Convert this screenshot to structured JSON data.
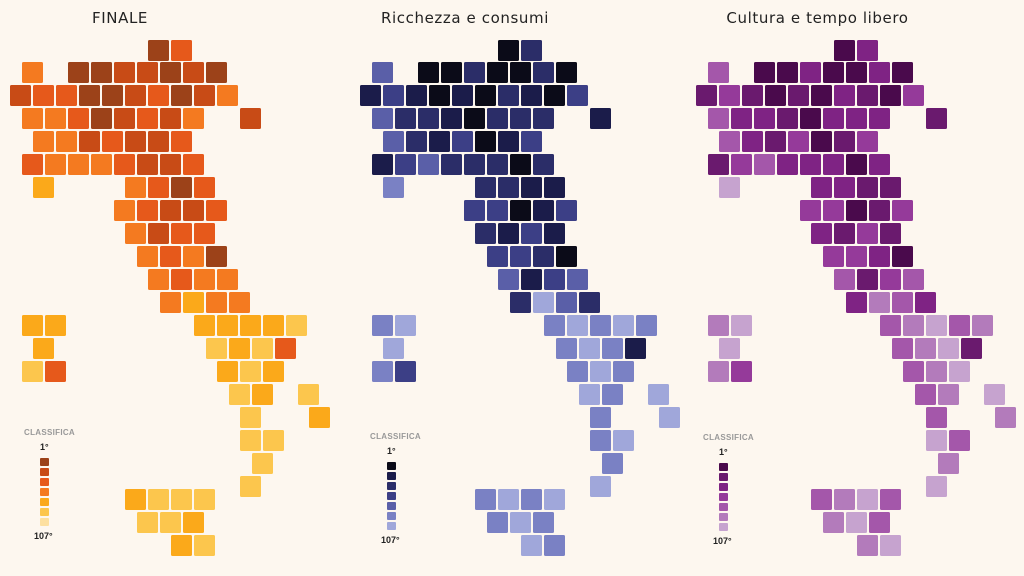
{
  "chart_data": [
    {
      "type": "heatmap",
      "title": "FINALE",
      "legend": {
        "title": "CLASSIFICA",
        "top_label": "1°",
        "bottom_label": "107°"
      },
      "colors": [
        "#9c4219",
        "#c84b16",
        "#e6591b",
        "#f47a20",
        "#fba91a",
        "#fcc64d",
        "#fde0a0"
      ]
    },
    {
      "type": "heatmap",
      "title": "Ricchezza e consumi",
      "legend": {
        "title": "CLASSIFICA",
        "top_label": "1°",
        "bottom_label": "107°"
      },
      "colors": [
        "#0b0b18",
        "#1b1c4a",
        "#2b2d68",
        "#3c3f86",
        "#5a5fa8",
        "#7a81c4",
        "#a0a7da"
      ]
    },
    {
      "type": "heatmap",
      "title": "Cultura e tempo libero",
      "legend": {
        "title": "CLASSIFICA",
        "top_label": "1°",
        "bottom_label": "107°"
      },
      "colors": [
        "#4a0a4c",
        "#6a1a6e",
        "#7f2384",
        "#953a9a",
        "#a457aa",
        "#b37bbb",
        "#c6a3cf"
      ]
    }
  ]
}
